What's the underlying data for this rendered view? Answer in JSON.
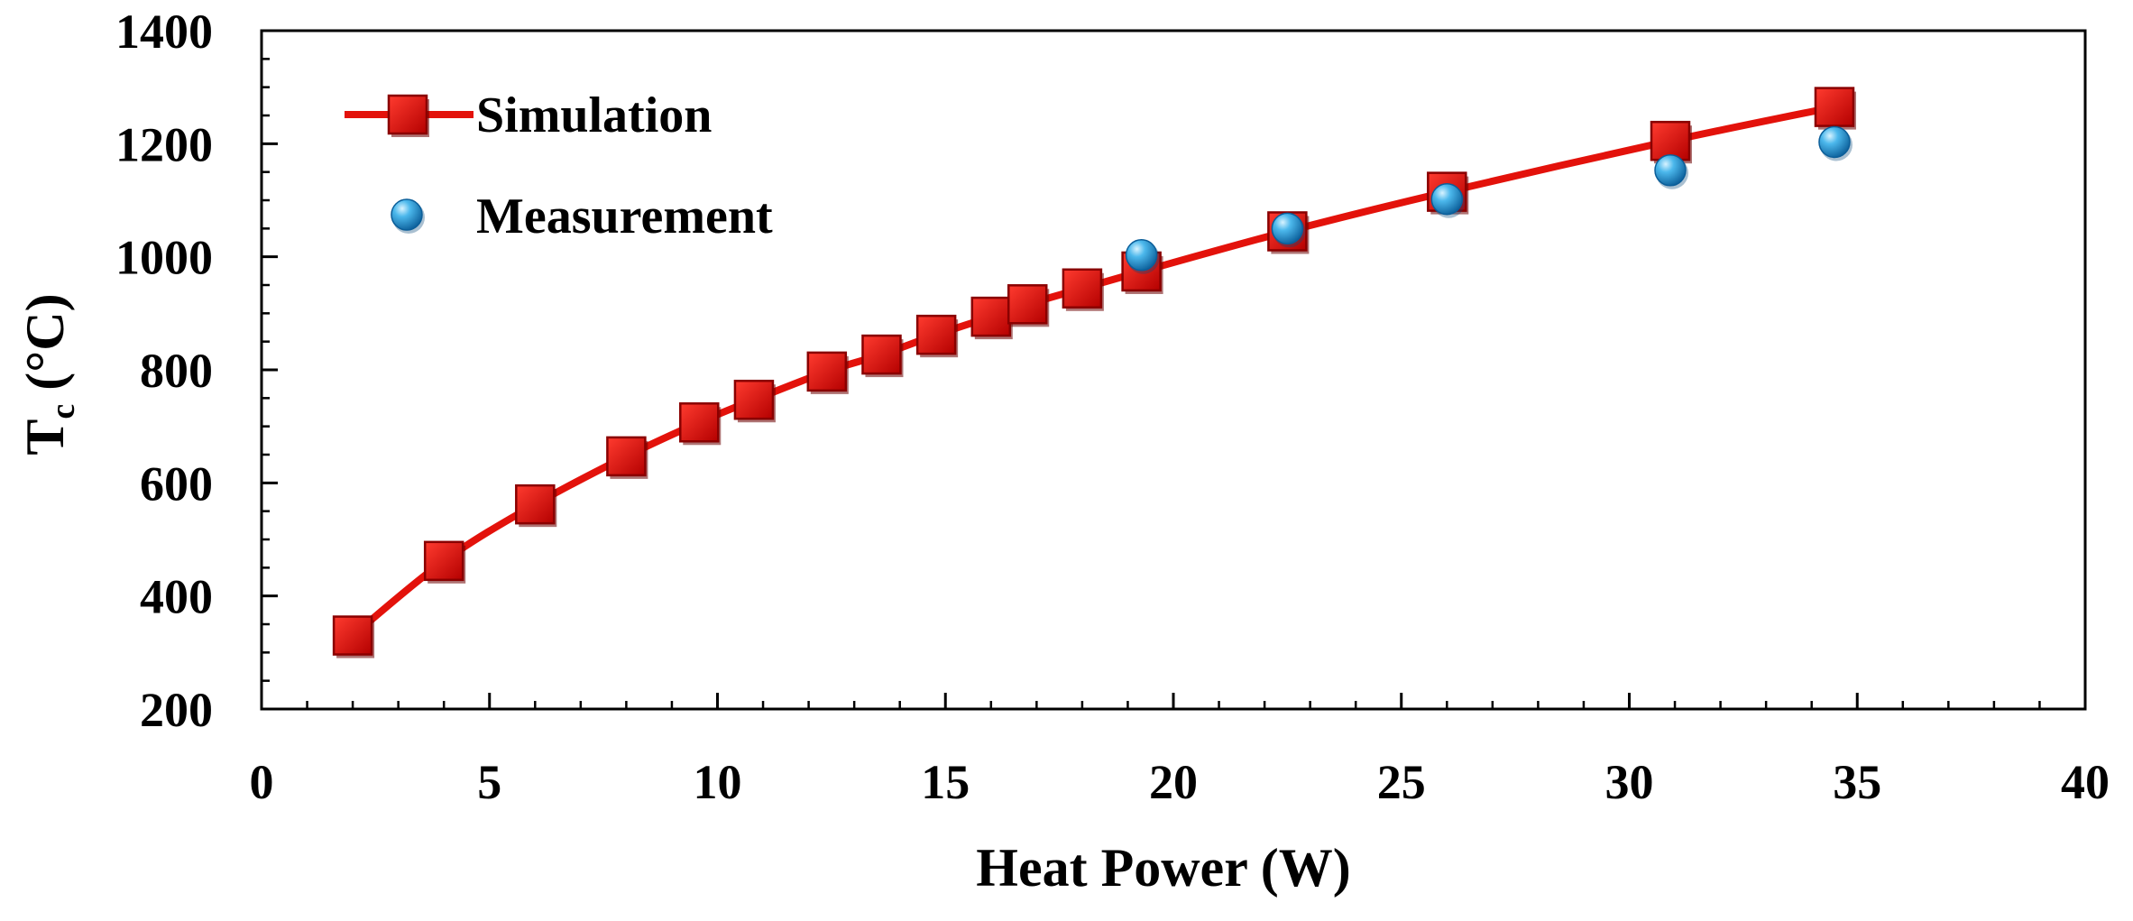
{
  "chart_data": {
    "type": "scatter",
    "title": "",
    "xlabel": "Heat Power (W)",
    "ylabel_main": "T",
    "ylabel_sub": "c",
    "ylabel_unit": " (°C)",
    "xlim": [
      0,
      40
    ],
    "ylim": [
      200,
      1400
    ],
    "x_ticks": [
      0,
      5,
      10,
      15,
      20,
      25,
      30,
      35,
      40
    ],
    "y_ticks": [
      200,
      400,
      600,
      800,
      1000,
      1200,
      1400
    ],
    "x_minor_step": 1,
    "y_minor_step": 50,
    "grid": false,
    "legend_position": "top-left",
    "series": [
      {
        "name": "Simulation",
        "style": "line-with-square-markers",
        "color": "#e3120b",
        "x": [
          2,
          4,
          6,
          8,
          9.6,
          10.8,
          12.4,
          13.6,
          14.8,
          16,
          16.8,
          18,
          19.3,
          22.5,
          26,
          30.9,
          34.5
        ],
        "y": [
          330,
          462,
          562,
          647,
          707,
          747,
          797,
          827,
          862,
          894,
          916,
          944,
          974,
          1045,
          1115,
          1205,
          1265
        ]
      },
      {
        "name": "Measurement",
        "style": "circle-markers",
        "color": "#1f9ad6",
        "x": [
          19.3,
          22.5,
          26,
          30.9,
          34.5
        ],
        "y": [
          1003,
          1050,
          1102,
          1153,
          1203
        ]
      }
    ]
  }
}
